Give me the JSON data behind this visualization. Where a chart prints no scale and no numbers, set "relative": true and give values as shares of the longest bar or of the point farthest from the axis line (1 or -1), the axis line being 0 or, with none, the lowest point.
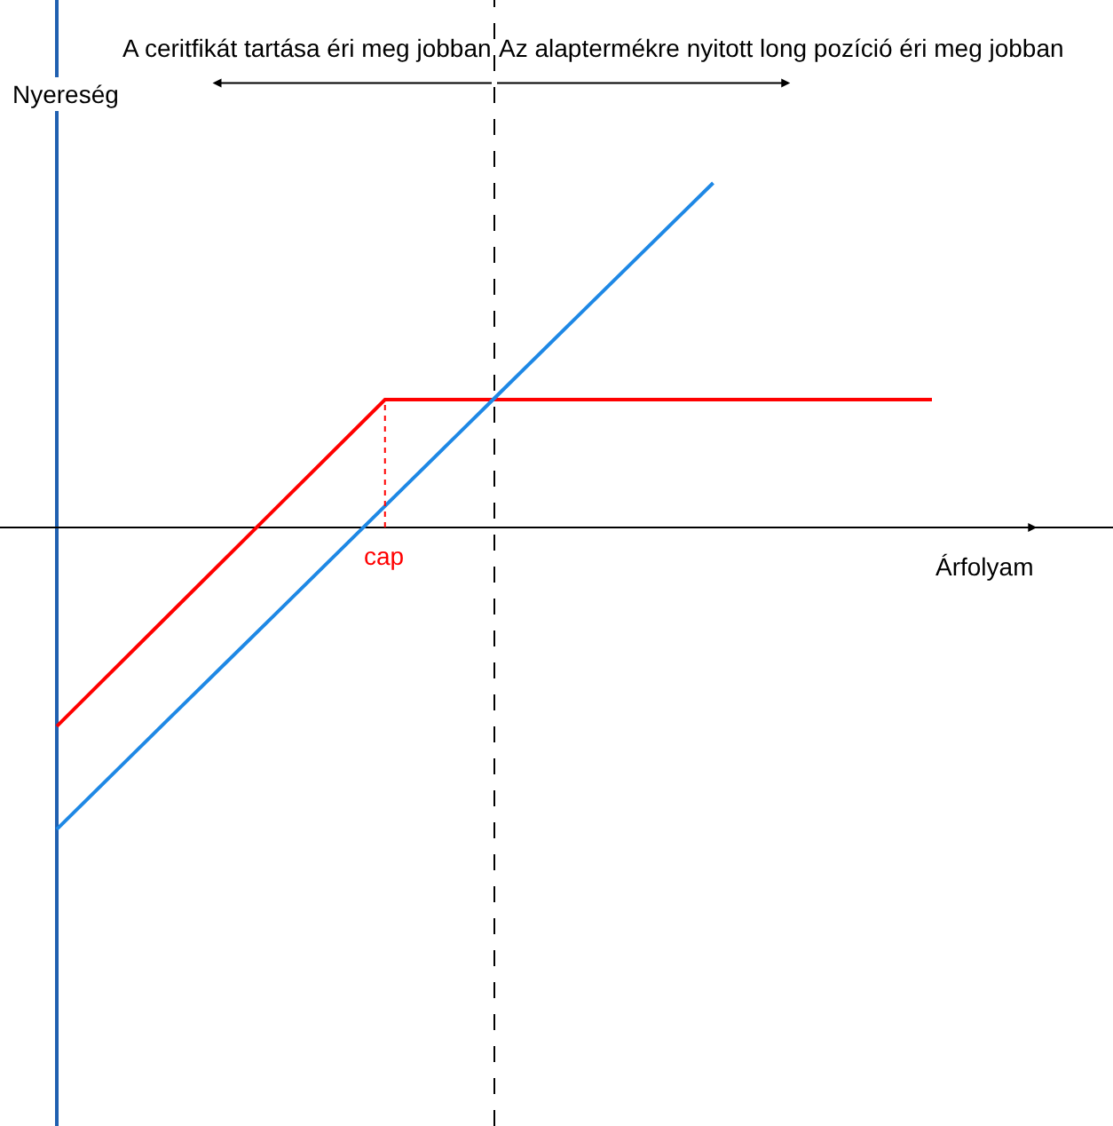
{
  "chart_data": {
    "type": "line",
    "relative": true,
    "xlabel": "Árfolyam",
    "ylabel": "Nyereség",
    "annotations": [
      "A ceritfikát tartása éri meg jobban",
      "Az alaptermékre nyitott long pozíció éri meg jobban"
    ],
    "categories": [
      null,
      null,
      null,
      null,
      null,
      null,
      null,
      null,
      null
    ],
    "series": [
      {
        "color": "#ff0000",
        "values": [
          -0.577,
          -0.261,
          0.055,
          0.371,
          0.371,
          0.371,
          0.371,
          0.371,
          0.371
        ]
      },
      {
        "color": "#1e88e5",
        "values": [
          -0.876,
          -0.563,
          -0.251,
          0.062,
          0.375,
          0.688,
          1.0,
          null,
          null
        ]
      }
    ],
    "ref_lines": [
      {
        "axis": "x",
        "color": "#000000",
        "line_style": "dashed"
      },
      {
        "axis": "x",
        "label": "cap",
        "color": "#ff0000",
        "line_style": "dotted"
      }
    ],
    "marker": "none",
    "line_style": "solid"
  }
}
